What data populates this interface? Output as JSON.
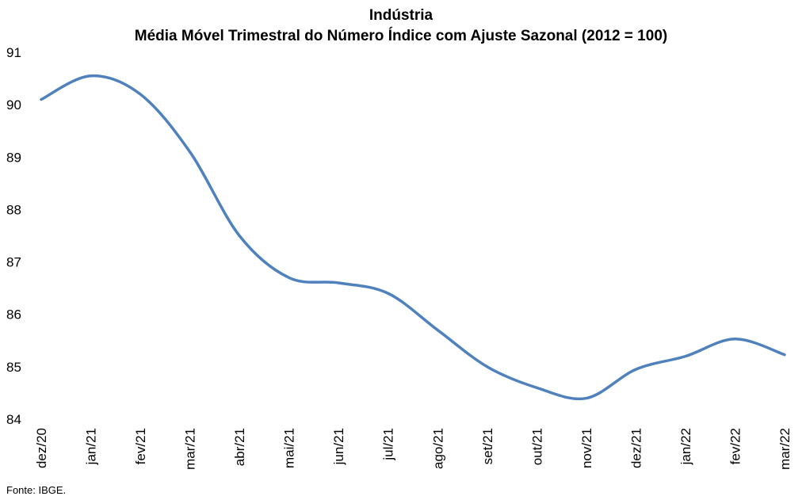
{
  "chart_data": {
    "type": "line",
    "title": "Indústria",
    "subtitle": "Média Móvel Trimestral do Número Índice com Ajuste Sazonal (2012 = 100)",
    "xlabel": "",
    "ylabel": "",
    "categories": [
      "dez/20",
      "jan/21",
      "fev/21",
      "mar/21",
      "abr/21",
      "mai/21",
      "jun/21",
      "jul/21",
      "ago/21",
      "set/21",
      "out/21",
      "nov/21",
      "dez/21",
      "jan/22",
      "fev/22",
      "mar/22"
    ],
    "series": [
      {
        "name": "",
        "color": "#4F81BD",
        "values": [
          90.1,
          90.55,
          90.2,
          89.1,
          87.5,
          86.7,
          86.6,
          86.4,
          85.7,
          85.0,
          84.6,
          84.4,
          84.95,
          85.2,
          85.53,
          85.23
        ]
      }
    ],
    "ylim": [
      84,
      91
    ],
    "yticks": [
      84,
      85,
      86,
      87,
      88,
      89,
      90,
      91
    ],
    "grid": false,
    "legend": "none"
  },
  "footer": {
    "source": "Fonte: IBGE."
  }
}
